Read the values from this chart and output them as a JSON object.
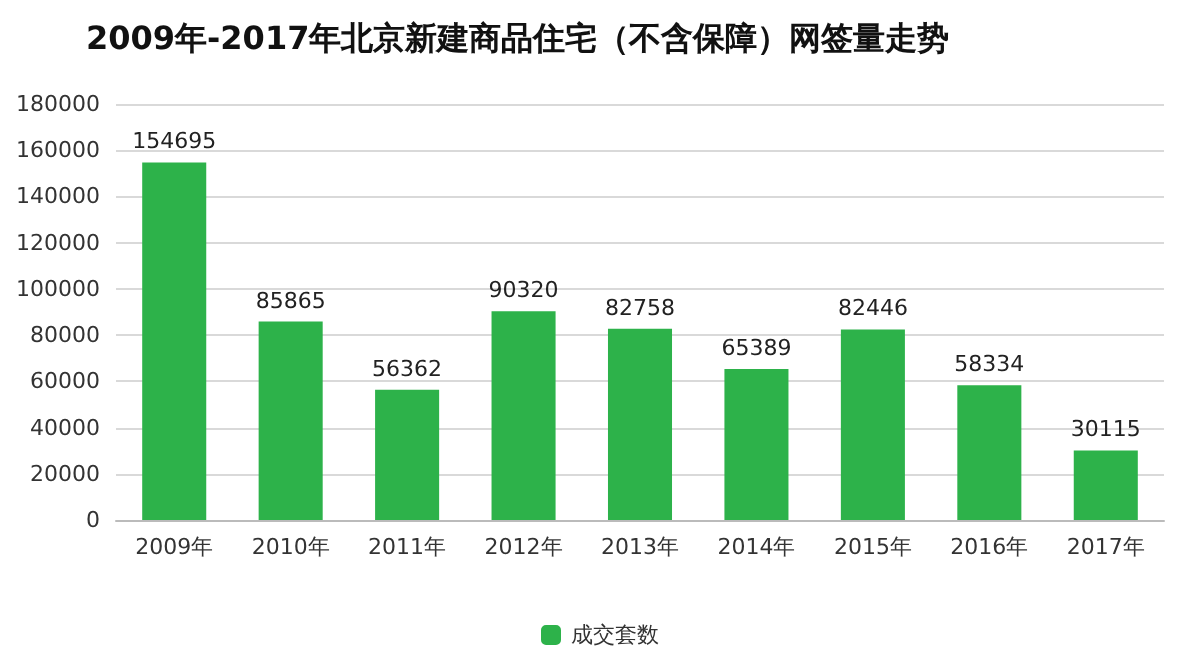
{
  "chart_data": {
    "type": "bar",
    "title": "2009年-2017年北京新建商品住宅（不含保障）网签量走势",
    "categories": [
      "2009年",
      "2010年",
      "2011年",
      "2012年",
      "2013年",
      "2014年",
      "2015年",
      "2016年",
      "2017年"
    ],
    "series": [
      {
        "name": "成交套数",
        "color": "#2db24a",
        "values": [
          154695,
          85865,
          56362,
          90320,
          82758,
          65389,
          82446,
          58334,
          30115
        ]
      }
    ],
    "ylim": [
      0,
      180000
    ],
    "yticks": [
      0,
      20000,
      40000,
      60000,
      80000,
      100000,
      120000,
      140000,
      160000,
      180000
    ],
    "grid": "y",
    "legend": "bottom",
    "data_labels": true
  }
}
